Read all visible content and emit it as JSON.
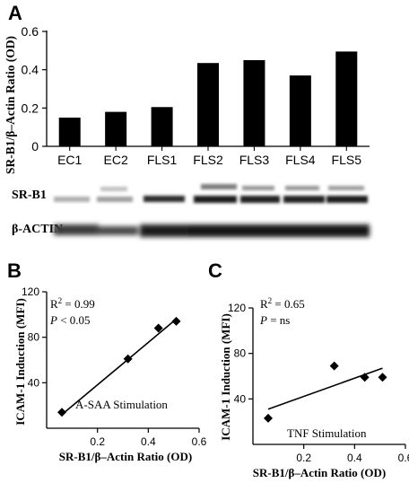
{
  "figure": {
    "panel_labels": [
      "A",
      "B",
      "C"
    ],
    "blot": {
      "row_labels": [
        "SR-B1",
        "β-ACTIN"
      ]
    }
  },
  "chart_data": [
    {
      "panel": "A",
      "type": "bar",
      "categories": [
        "EC1",
        "EC2",
        "FLS1",
        "FLS2",
        "FLS3",
        "FLS4",
        "FLS5"
      ],
      "values": [
        0.15,
        0.18,
        0.205,
        0.435,
        0.45,
        0.37,
        0.495
      ],
      "xlabel": "",
      "ylabel": "SR-B1/β–Actin Ratio (OD)",
      "ylim": [
        0,
        0.6
      ],
      "yticks": [
        0,
        0.2,
        0.4,
        0.6
      ],
      "ytick_labels": [
        "0",
        "0.2",
        "0.4",
        "0.6"
      ],
      "bar_color": "#000000",
      "grid": false
    },
    {
      "panel": "B",
      "type": "scatter",
      "points": [
        {
          "x": 0.06,
          "y": 14
        },
        {
          "x": 0.32,
          "y": 61
        },
        {
          "x": 0.44,
          "y": 88
        },
        {
          "x": 0.51,
          "y": 94
        }
      ],
      "fit_line": {
        "x": [
          0.06,
          0.51
        ],
        "y": [
          12,
          96
        ]
      },
      "xlabel": "SR-B1/β–Actin Ratio (OD)",
      "ylabel": "ICAM-1 Induction (MFI)",
      "xlim": [
        0,
        0.6
      ],
      "ylim": [
        0,
        120
      ],
      "xticks": [
        0.2,
        0.4,
        0.6
      ],
      "xtick_labels": [
        "0.2",
        "0.4",
        "0.6"
      ],
      "yticks": [
        40,
        80,
        120
      ],
      "ytick_labels": [
        "40",
        "80",
        "120"
      ],
      "stats": {
        "r2_label": "R",
        "r2_exp": "2",
        "r2_value": " = 0.99",
        "p_label": "P",
        "p_value": " < 0.05"
      },
      "annotation": "A-SAA Stimulation",
      "grid": false
    },
    {
      "panel": "C",
      "type": "scatter",
      "points": [
        {
          "x": 0.06,
          "y": 23
        },
        {
          "x": 0.32,
          "y": 69
        },
        {
          "x": 0.44,
          "y": 59
        },
        {
          "x": 0.51,
          "y": 59
        }
      ],
      "fit_line": {
        "x": [
          0.06,
          0.51
        ],
        "y": [
          31,
          67
        ]
      },
      "xlabel": "SR-B1/β–Actin Ratio (OD)",
      "ylabel": "ICAM-1 Induction (MFI)",
      "xlim": [
        0,
        0.6
      ],
      "ylim": [
        0,
        120
      ],
      "xticks": [
        0.2,
        0.4,
        0.6
      ],
      "xtick_labels": [
        "0.2",
        "0.4",
        "0.6"
      ],
      "yticks": [
        40,
        80,
        120
      ],
      "ytick_labels": [
        "40",
        "80",
        "120"
      ],
      "stats": {
        "r2_label": "R",
        "r2_exp": "2",
        "r2_value": " = 0.65",
        "p_label": "P",
        "p_value": " = ns"
      },
      "annotation": "TNF  Stimulation",
      "grid": false
    }
  ]
}
